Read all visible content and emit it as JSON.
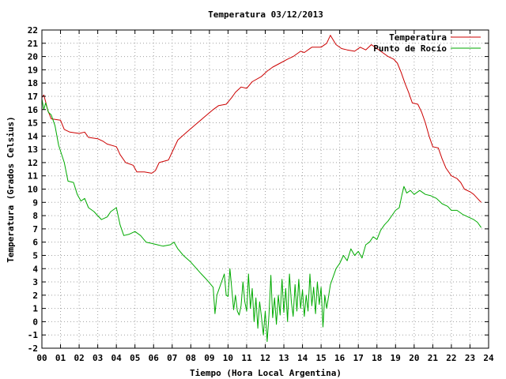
{
  "chart_data": {
    "type": "line",
    "title": "Temperatura 03/12/2013",
    "xlabel": "Tiempo (Hora Local Argentina)",
    "ylabel": "Temperatura (Grados Celsius)",
    "xlim": [
      0,
      24
    ],
    "ylim": [
      -2,
      22
    ],
    "x_ticks": [
      "00",
      "01",
      "02",
      "03",
      "04",
      "05",
      "06",
      "07",
      "08",
      "09",
      "10",
      "11",
      "12",
      "13",
      "14",
      "15",
      "16",
      "17",
      "18",
      "19",
      "20",
      "21",
      "22",
      "23",
      "24"
    ],
    "y_ticks": [
      -2,
      -1,
      0,
      1,
      2,
      3,
      4,
      5,
      6,
      7,
      8,
      9,
      10,
      11,
      12,
      13,
      14,
      15,
      16,
      17,
      18,
      19,
      20,
      21,
      22
    ],
    "grid": true,
    "legend_position": "top-right",
    "series": [
      {
        "name": "Temperatura",
        "color": "#cc0000",
        "points": [
          [
            0.0,
            16.9
          ],
          [
            0.1,
            17.1
          ],
          [
            0.2,
            16.6
          ],
          [
            0.3,
            16.0
          ],
          [
            0.5,
            15.3
          ],
          [
            1.0,
            15.2
          ],
          [
            1.2,
            14.5
          ],
          [
            1.5,
            14.3
          ],
          [
            2.0,
            14.2
          ],
          [
            2.3,
            14.3
          ],
          [
            2.5,
            13.9
          ],
          [
            3.0,
            13.8
          ],
          [
            3.3,
            13.6
          ],
          [
            3.5,
            13.4
          ],
          [
            4.0,
            13.2
          ],
          [
            4.2,
            12.6
          ],
          [
            4.5,
            12.0
          ],
          [
            4.9,
            11.8
          ],
          [
            5.1,
            11.3
          ],
          [
            5.5,
            11.3
          ],
          [
            5.9,
            11.2
          ],
          [
            6.1,
            11.4
          ],
          [
            6.3,
            12.0
          ],
          [
            6.8,
            12.2
          ],
          [
            7.0,
            12.8
          ],
          [
            7.3,
            13.7
          ],
          [
            7.7,
            14.2
          ],
          [
            8.2,
            14.8
          ],
          [
            8.7,
            15.4
          ],
          [
            9.2,
            16.0
          ],
          [
            9.5,
            16.3
          ],
          [
            9.9,
            16.4
          ],
          [
            10.2,
            16.9
          ],
          [
            10.4,
            17.3
          ],
          [
            10.7,
            17.7
          ],
          [
            11.0,
            17.6
          ],
          [
            11.3,
            18.1
          ],
          [
            11.8,
            18.5
          ],
          [
            12.1,
            18.9
          ],
          [
            12.4,
            19.2
          ],
          [
            12.8,
            19.5
          ],
          [
            13.2,
            19.8
          ],
          [
            13.5,
            20.0
          ],
          [
            13.9,
            20.4
          ],
          [
            14.1,
            20.3
          ],
          [
            14.5,
            20.7
          ],
          [
            15.0,
            20.7
          ],
          [
            15.3,
            21.0
          ],
          [
            15.5,
            21.6
          ],
          [
            15.8,
            20.9
          ],
          [
            16.1,
            20.6
          ],
          [
            16.4,
            20.5
          ],
          [
            16.8,
            20.4
          ],
          [
            17.1,
            20.7
          ],
          [
            17.4,
            20.5
          ],
          [
            17.7,
            20.9
          ],
          [
            18.0,
            20.6
          ],
          [
            18.3,
            20.3
          ],
          [
            18.6,
            20.0
          ],
          [
            18.9,
            19.8
          ],
          [
            19.1,
            19.5
          ],
          [
            19.3,
            18.8
          ],
          [
            19.5,
            18.0
          ],
          [
            19.7,
            17.3
          ],
          [
            19.9,
            16.5
          ],
          [
            20.2,
            16.4
          ],
          [
            20.4,
            15.8
          ],
          [
            20.6,
            15.0
          ],
          [
            20.8,
            14.0
          ],
          [
            21.0,
            13.2
          ],
          [
            21.3,
            13.1
          ],
          [
            21.5,
            12.3
          ],
          [
            21.7,
            11.6
          ],
          [
            22.0,
            11.0
          ],
          [
            22.3,
            10.8
          ],
          [
            22.5,
            10.5
          ],
          [
            22.7,
            10.0
          ],
          [
            23.0,
            9.8
          ],
          [
            23.2,
            9.6
          ],
          [
            23.4,
            9.3
          ],
          [
            23.6,
            9.0
          ]
        ]
      },
      {
        "name": "Punto de Rocío",
        "color": "#00aa00",
        "points": [
          [
            0.0,
            16.8
          ],
          [
            0.1,
            16.0
          ],
          [
            0.2,
            16.5
          ],
          [
            0.35,
            15.8
          ],
          [
            0.5,
            15.6
          ],
          [
            0.7,
            14.8
          ],
          [
            0.9,
            13.3
          ],
          [
            1.2,
            12.0
          ],
          [
            1.4,
            10.6
          ],
          [
            1.7,
            10.5
          ],
          [
            1.9,
            9.6
          ],
          [
            2.1,
            9.1
          ],
          [
            2.3,
            9.3
          ],
          [
            2.5,
            8.6
          ],
          [
            2.8,
            8.3
          ],
          [
            3.0,
            8.0
          ],
          [
            3.2,
            7.7
          ],
          [
            3.5,
            7.9
          ],
          [
            3.7,
            8.3
          ],
          [
            4.0,
            8.6
          ],
          [
            4.2,
            7.3
          ],
          [
            4.4,
            6.5
          ],
          [
            4.7,
            6.6
          ],
          [
            5.0,
            6.8
          ],
          [
            5.3,
            6.5
          ],
          [
            5.6,
            6.0
          ],
          [
            5.9,
            5.9
          ],
          [
            6.2,
            5.8
          ],
          [
            6.5,
            5.7
          ],
          [
            6.9,
            5.8
          ],
          [
            7.1,
            6.0
          ],
          [
            7.3,
            5.5
          ],
          [
            7.6,
            5.0
          ],
          [
            8.0,
            4.5
          ],
          [
            8.5,
            3.7
          ],
          [
            8.9,
            3.1
          ],
          [
            9.2,
            2.6
          ],
          [
            9.3,
            0.6
          ],
          [
            9.4,
            2.0
          ],
          [
            9.6,
            2.8
          ],
          [
            9.8,
            3.6
          ],
          [
            9.9,
            2.0
          ],
          [
            10.0,
            1.9
          ],
          [
            10.1,
            4.0
          ],
          [
            10.2,
            2.5
          ],
          [
            10.3,
            0.9
          ],
          [
            10.4,
            2.0
          ],
          [
            10.5,
            0.8
          ],
          [
            10.6,
            0.5
          ],
          [
            10.7,
            1.2
          ],
          [
            10.8,
            3.0
          ],
          [
            10.9,
            1.5
          ],
          [
            11.0,
            0.8
          ],
          [
            11.1,
            3.6
          ],
          [
            11.2,
            1.0
          ],
          [
            11.3,
            2.5
          ],
          [
            11.4,
            0.0
          ],
          [
            11.5,
            1.8
          ],
          [
            11.6,
            -0.5
          ],
          [
            11.7,
            1.5
          ],
          [
            11.8,
            0.3
          ],
          [
            11.9,
            -1.0
          ],
          [
            12.0,
            0.8
          ],
          [
            12.1,
            -1.5
          ],
          [
            12.2,
            0.5
          ],
          [
            12.3,
            3.5
          ],
          [
            12.4,
            0.3
          ],
          [
            12.5,
            1.8
          ],
          [
            12.6,
            -0.2
          ],
          [
            12.7,
            2.0
          ],
          [
            12.8,
            0.5
          ],
          [
            12.9,
            3.2
          ],
          [
            13.0,
            0.7
          ],
          [
            13.1,
            2.5
          ],
          [
            13.2,
            0.0
          ],
          [
            13.3,
            3.6
          ],
          [
            13.4,
            1.5
          ],
          [
            13.5,
            0.4
          ],
          [
            13.6,
            2.8
          ],
          [
            13.7,
            0.8
          ],
          [
            13.8,
            3.2
          ],
          [
            13.9,
            1.0
          ],
          [
            14.0,
            2.4
          ],
          [
            14.1,
            0.4
          ],
          [
            14.2,
            2.0
          ],
          [
            14.3,
            0.8
          ],
          [
            14.4,
            3.6
          ],
          [
            14.5,
            1.2
          ],
          [
            14.6,
            2.6
          ],
          [
            14.7,
            0.6
          ],
          [
            14.8,
            3.0
          ],
          [
            14.9,
            1.3
          ],
          [
            15.0,
            2.6
          ],
          [
            15.1,
            -0.4
          ],
          [
            15.2,
            2.0
          ],
          [
            15.3,
            1.0
          ],
          [
            15.5,
            2.8
          ],
          [
            15.6,
            3.2
          ],
          [
            15.8,
            4.0
          ],
          [
            16.0,
            4.4
          ],
          [
            16.2,
            5.0
          ],
          [
            16.4,
            4.6
          ],
          [
            16.6,
            5.5
          ],
          [
            16.8,
            5.0
          ],
          [
            17.0,
            5.3
          ],
          [
            17.2,
            4.8
          ],
          [
            17.4,
            5.8
          ],
          [
            17.6,
            6.0
          ],
          [
            17.8,
            6.4
          ],
          [
            18.0,
            6.2
          ],
          [
            18.2,
            6.9
          ],
          [
            18.4,
            7.3
          ],
          [
            18.6,
            7.6
          ],
          [
            18.8,
            8.0
          ],
          [
            19.0,
            8.4
          ],
          [
            19.2,
            8.6
          ],
          [
            19.35,
            9.6
          ],
          [
            19.45,
            10.2
          ],
          [
            19.6,
            9.7
          ],
          [
            19.8,
            9.9
          ],
          [
            20.0,
            9.6
          ],
          [
            20.3,
            9.9
          ],
          [
            20.6,
            9.6
          ],
          [
            20.9,
            9.5
          ],
          [
            21.2,
            9.3
          ],
          [
            21.5,
            8.9
          ],
          [
            21.8,
            8.7
          ],
          [
            22.0,
            8.4
          ],
          [
            22.3,
            8.4
          ],
          [
            22.6,
            8.1
          ],
          [
            22.9,
            7.9
          ],
          [
            23.2,
            7.7
          ],
          [
            23.4,
            7.5
          ],
          [
            23.6,
            7.1
          ]
        ]
      }
    ]
  }
}
